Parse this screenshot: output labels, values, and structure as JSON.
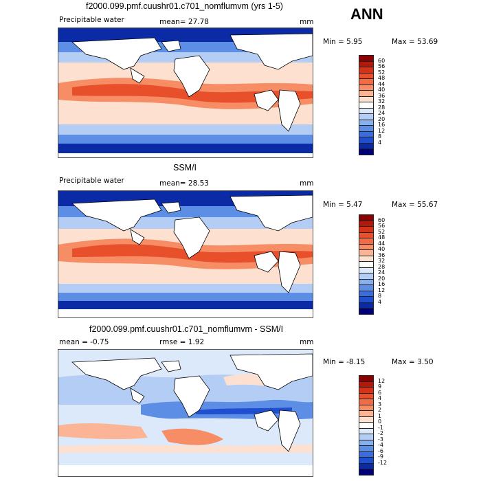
{
  "season": "ANN",
  "panels": [
    {
      "title": "f2000.099.pmf.cuushr01.c701_nomflumvm (yrs 1-5)",
      "left_label": "Precipitable water",
      "mean_text": "mean=  27.78",
      "units": "mm",
      "min_text": "Min =    5.95",
      "max_text": "Max =   53.69",
      "colorbar": {
        "labels": [
          "60",
          "56",
          "52",
          "48",
          "44",
          "40",
          "36",
          "32",
          "28",
          "24",
          "20",
          "16",
          "12",
          "8",
          "4"
        ],
        "colors": [
          "#8b0000",
          "#b11a0b",
          "#d5321a",
          "#e8502c",
          "#f26b43",
          "#f78d64",
          "#fbb596",
          "#fde0cf",
          "#ffffff",
          "#dce9fb",
          "#b3cdf5",
          "#86b0ee",
          "#5c8ee6",
          "#3a6cdc",
          "#1f4fcf",
          "#0b2aa6",
          "#00007a"
        ]
      }
    },
    {
      "title": "SSM/I",
      "left_label": "Precipitable water",
      "mean_text": "mean=  28.53",
      "units": "mm",
      "min_text": "Min =    5.47",
      "max_text": "Max =   55.67",
      "colorbar": {
        "labels": [
          "60",
          "56",
          "52",
          "48",
          "44",
          "40",
          "36",
          "32",
          "28",
          "24",
          "20",
          "16",
          "12",
          "8",
          "4"
        ],
        "colors": [
          "#8b0000",
          "#b11a0b",
          "#d5321a",
          "#e8502c",
          "#f26b43",
          "#f78d64",
          "#fbb596",
          "#fde0cf",
          "#ffffff",
          "#dce9fb",
          "#b3cdf5",
          "#86b0ee",
          "#5c8ee6",
          "#3a6cdc",
          "#1f4fcf",
          "#0b2aa6",
          "#00007a"
        ]
      }
    },
    {
      "title": "f2000.099.pmf.cuushr01.c701_nomflumvm - SSM/I",
      "left_label": "mean =   -0.75",
      "mean_text": "rmse =   1.92",
      "units": "mm",
      "min_text": "Min =  -8.15",
      "max_text": "Max =    3.50",
      "colorbar": {
        "labels": [
          "12",
          "9",
          "6",
          "4",
          "3",
          "2",
          "1",
          "0",
          "-1",
          "-2",
          "-3",
          "-4",
          "-6",
          "-9",
          "-12"
        ],
        "colors": [
          "#8b0000",
          "#b11a0b",
          "#d5321a",
          "#e8502c",
          "#f26b43",
          "#f78d64",
          "#fbb596",
          "#fde0cf",
          "#ffffff",
          "#dce9fb",
          "#b3cdf5",
          "#86b0ee",
          "#5c8ee6",
          "#3a6cdc",
          "#1f4fcf",
          "#0b2aa6",
          "#00007a"
        ]
      }
    }
  ]
}
